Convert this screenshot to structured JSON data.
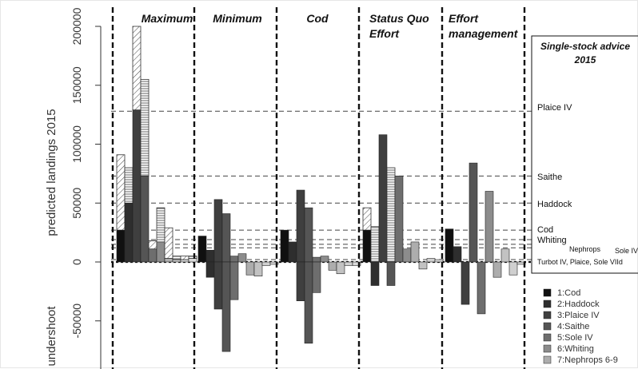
{
  "chart_data": {
    "type": "bar",
    "ylabel": "predicted landings 2015",
    "ylabel_secondary": "undershoot",
    "ylim": [
      -90000,
      210000
    ],
    "yticks": [
      -50000,
      0,
      50000,
      100000,
      150000,
      200000
    ],
    "grid": false,
    "panels": [
      "Maximum",
      "Minimum",
      "Cod",
      "Status Quo Effort",
      "Effort management"
    ],
    "panel_title_lines": [
      [
        "Maximum"
      ],
      [
        "Minimum"
      ],
      [
        "Cod"
      ],
      [
        "Status Quo",
        "Effort"
      ],
      [
        "Effort",
        "management"
      ]
    ],
    "series_names": [
      "1:Cod",
      "2:Haddock",
      "3:Plaice IV",
      "4:Saithe",
      "5:Sole IV",
      "6:Whiting",
      "7:Nephrops 6-9"
    ],
    "series_colors": [
      "#101010",
      "#2e2e2e",
      "#3f3f3f",
      "#555555",
      "#6e6e6e",
      "#8c8c8c",
      "#adadad"
    ],
    "series": [
      {
        "name": "Maximum",
        "solid": [
          27000,
          50000,
          129000,
          73000,
          11000,
          17000,
          3000,
          2000,
          2000,
          3000
        ],
        "hatched_top": [
          91000,
          80000,
          200000,
          155000,
          18000,
          46000,
          29000,
          5000,
          5000,
          5000
        ]
      },
      {
        "name": "Minimum",
        "solid": [
          22000,
          -13000,
          -40000,
          -76000,
          -32000,
          7000,
          -11000,
          -12000,
          -3000,
          -2000
        ],
        "hatched_top": [
          22000,
          -13000,
          -40000,
          -76000,
          -32000,
          7000,
          -11000,
          -12000,
          -3000,
          -2000
        ],
        "positive_tops": [
          22000,
          10000,
          53000,
          41000,
          5000,
          7000,
          0,
          0,
          0,
          0
        ]
      },
      {
        "name": "Cod",
        "solid": [
          27000,
          17000,
          -33000,
          -69000,
          -26000,
          5000,
          -7000,
          -10000,
          -3000,
          -3000
        ],
        "positive_tops": [
          27000,
          17000,
          61000,
          46000,
          4000,
          10000,
          0,
          0,
          0,
          0
        ]
      },
      {
        "name": "Status Quo Effort",
        "solid": [
          27000,
          -20000,
          108000,
          -20000,
          73000,
          11000,
          17000,
          -6000,
          3000,
          2000
        ],
        "hatched_top": [
          46000,
          30000,
          108000,
          80000,
          73000,
          11000,
          17000,
          0,
          3000,
          2000
        ]
      },
      {
        "name": "Effort management",
        "solid": [
          28000,
          13000,
          -36000,
          84000,
          -44000,
          60000,
          -13000,
          11000,
          -11000,
          -2000
        ],
        "positive_tops": [
          28000,
          13000,
          0,
          84000,
          0,
          60000,
          0,
          11000,
          0,
          0
        ]
      }
    ],
    "reference_lines": [
      {
        "label": "Plaice IV",
        "value": 128000
      },
      {
        "label": "Saithe",
        "value": 73000
      },
      {
        "label": "Haddock",
        "value": 50000
      },
      {
        "label": "Cod",
        "value": 27000
      },
      {
        "label": "Whiting",
        "value": 19000
      },
      {
        "label": "Nephrops",
        "value": 15000
      },
      {
        "label": "Sole IV",
        "value": 12000
      },
      {
        "label": "Turbot IV, Plaice, Sole VIId",
        "value": 2000
      }
    ],
    "side_title": [
      "Single-stock advice",
      "2015"
    ],
    "legend_position": "bottom-right"
  }
}
